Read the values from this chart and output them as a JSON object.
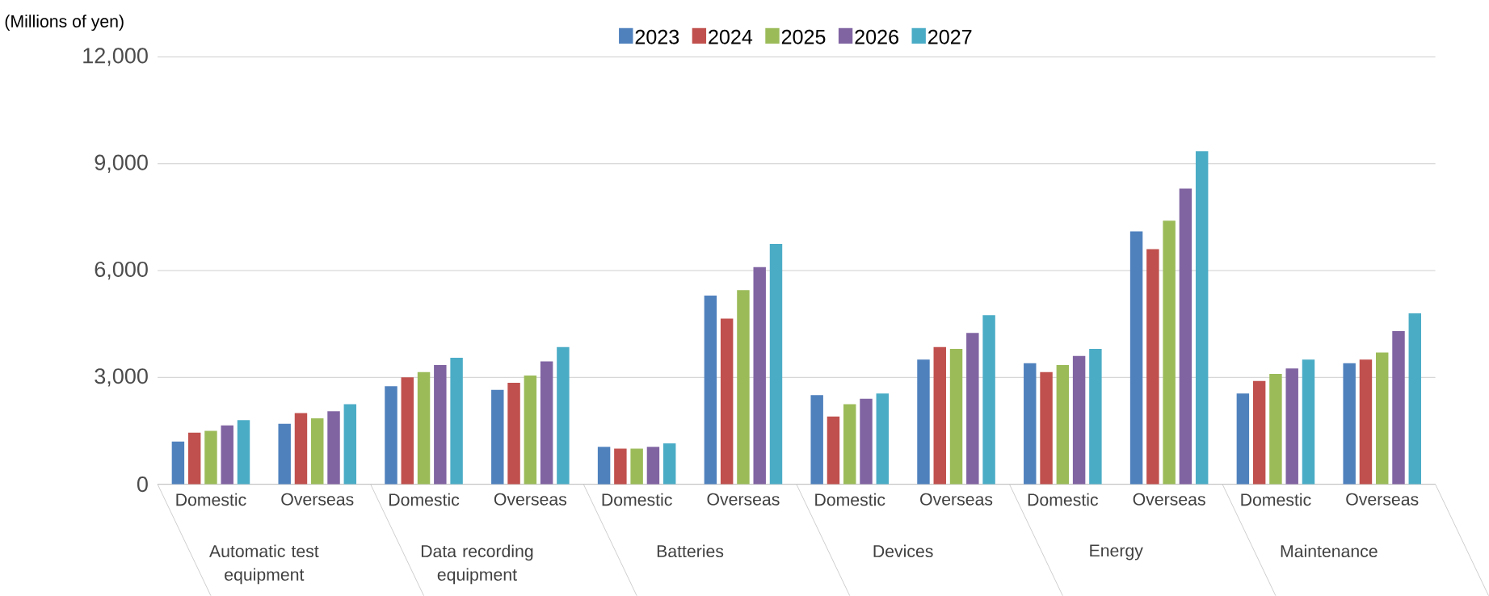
{
  "chart_data": {
    "type": "bar",
    "ylabel": "(Millions of yen)",
    "categories": [
      "Domestic",
      "Overseas",
      "Domestic",
      "Overseas",
      "Domestic",
      "Overseas",
      "Domestic",
      "Overseas",
      "Domestic",
      "Overseas",
      "Domestic",
      "Overseas"
    ],
    "annotations": [
      "Automatic test equipment",
      "Data recording equipment",
      "Batteries",
      "Devices",
      "Energy",
      "Maintenance"
    ],
    "series": [
      {
        "name": "2023",
        "color": "#4f81bd",
        "values": [
          1200,
          1700,
          2750,
          2650,
          1050,
          5300,
          2500,
          3500,
          3400,
          7100,
          2550,
          3400
        ]
      },
      {
        "name": "2024",
        "color": "#c0504d",
        "values": [
          1450,
          2000,
          3000,
          2850,
          1000,
          4650,
          1900,
          3850,
          3150,
          6600,
          2900,
          3500
        ]
      },
      {
        "name": "2025",
        "color": "#9bbb59",
        "values": [
          1500,
          1850,
          3150,
          3050,
          1000,
          5450,
          2250,
          3800,
          3350,
          7400,
          3100,
          3700
        ]
      },
      {
        "name": "2026",
        "color": "#8064a2",
        "values": [
          1650,
          2050,
          3350,
          3450,
          1050,
          6100,
          2400,
          4250,
          3600,
          8300,
          3250,
          4300
        ]
      },
      {
        "name": "2027",
        "color": "#4bacc6",
        "values": [
          1800,
          2250,
          3550,
          3850,
          1150,
          6750,
          2550,
          4750,
          3800,
          9350,
          3500,
          4800
        ]
      }
    ],
    "ylim": [
      0,
      12000
    ],
    "yticks": [
      0,
      {
        "value": 3000,
        "label": "3,000"
      },
      {
        "value": 6000,
        "label": "6,000"
      },
      {
        "value": 9000,
        "label": "9,000"
      },
      {
        "value": 12000,
        "label": "12,000"
      }
    ],
    "grid": "y",
    "legend": "top"
  }
}
